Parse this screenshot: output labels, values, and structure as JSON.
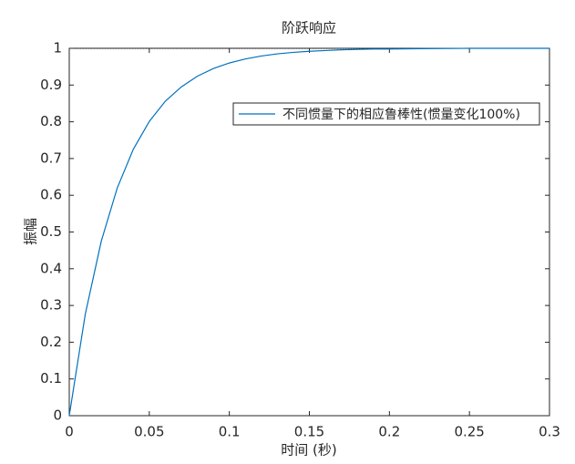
{
  "chart_data": {
    "type": "line",
    "title": "阶跃响应",
    "xlabel": "时间 (秒)",
    "ylabel": "振幅",
    "x": [
      0,
      0.01,
      0.02,
      0.03,
      0.04,
      0.05,
      0.06,
      0.07,
      0.08,
      0.09,
      0.1,
      0.11,
      0.12,
      0.13,
      0.14,
      0.15,
      0.16,
      0.17,
      0.18,
      0.19,
      0.2,
      0.22,
      0.25,
      0.3
    ],
    "series": [
      {
        "name": "不同惯量下的相应鲁棒性(惯量变化100%)",
        "color": "#0072bd",
        "values": [
          0,
          0.276,
          0.475,
          0.62,
          0.725,
          0.801,
          0.856,
          0.895,
          0.924,
          0.945,
          0.96,
          0.971,
          0.979,
          0.985,
          0.989,
          0.992,
          0.994,
          0.996,
          0.997,
          0.998,
          0.998,
          0.999,
          1,
          1
        ]
      }
    ],
    "xlim": [
      0,
      0.3
    ],
    "ylim": [
      0,
      1
    ],
    "xticks": [
      0,
      0.05,
      0.1,
      0.15,
      0.2,
      0.25,
      0.3
    ],
    "yticks": [
      0,
      0.1,
      0.2,
      0.3,
      0.4,
      0.5,
      0.6,
      0.7,
      0.8,
      0.9,
      1
    ],
    "legend": "upper right"
  }
}
